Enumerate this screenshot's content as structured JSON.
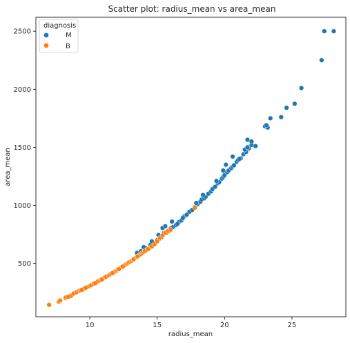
{
  "chart_data": {
    "type": "scatter",
    "title": "Scatter plot: radius_mean vs area_mean",
    "xlabel": "radius_mean",
    "ylabel": "area_mean",
    "xlim": [
      6.0,
      29.0
    ],
    "ylim": [
      40,
      2620
    ],
    "xticks": [
      10,
      15,
      20,
      25
    ],
    "yticks": [
      500,
      1000,
      1500,
      2000,
      2500
    ],
    "grid": false,
    "legend": {
      "title": "diagnosis",
      "placement": "top-left"
    },
    "colors": {
      "M": "#1f77b4",
      "B": "#ff7f0e"
    },
    "series": [
      {
        "name": "M",
        "points": [
          [
            13.5,
            590
          ],
          [
            13.8,
            605
          ],
          [
            14.2,
            630
          ],
          [
            14.5,
            660
          ],
          [
            14.8,
            675
          ],
          [
            15.0,
            700
          ],
          [
            15.2,
            715
          ],
          [
            15.3,
            725
          ],
          [
            15.5,
            760
          ],
          [
            15.4,
            805
          ],
          [
            15.7,
            765
          ],
          [
            15.9,
            780
          ],
          [
            16.0,
            800
          ],
          [
            16.2,
            815
          ],
          [
            16.4,
            830
          ],
          [
            16.6,
            855
          ],
          [
            16.8,
            870
          ],
          [
            17.0,
            905
          ],
          [
            17.2,
            920
          ],
          [
            17.4,
            945
          ],
          [
            17.6,
            960
          ],
          [
            17.8,
            985
          ],
          [
            18.0,
            1010
          ],
          [
            18.2,
            1030
          ],
          [
            18.3,
            1050
          ],
          [
            18.5,
            1060
          ],
          [
            18.6,
            1075
          ],
          [
            18.8,
            1100
          ],
          [
            19.0,
            1120
          ],
          [
            19.1,
            1140
          ],
          [
            19.3,
            1160
          ],
          [
            19.5,
            1190
          ],
          [
            19.6,
            1200
          ],
          [
            19.8,
            1230
          ],
          [
            19.9,
            1245
          ],
          [
            20.0,
            1260
          ],
          [
            20.2,
            1285
          ],
          [
            20.3,
            1300
          ],
          [
            20.5,
            1320
          ],
          [
            20.6,
            1335
          ],
          [
            20.7,
            1345
          ],
          [
            20.9,
            1375
          ],
          [
            21.0,
            1390
          ],
          [
            21.2,
            1405
          ],
          [
            21.4,
            1440
          ],
          [
            21.6,
            1460
          ],
          [
            21.5,
            1480
          ],
          [
            21.8,
            1490
          ],
          [
            22.0,
            1520
          ],
          [
            22.3,
            1510
          ],
          [
            21.7,
            1500
          ],
          [
            22.0,
            1550
          ],
          [
            21.7,
            1565
          ],
          [
            21.1,
            1400
          ],
          [
            20.6,
            1420
          ],
          [
            20.1,
            1350
          ],
          [
            19.9,
            1300
          ],
          [
            19.4,
            1210
          ],
          [
            18.4,
            1090
          ],
          [
            17.9,
            1020
          ],
          [
            16.9,
            890
          ],
          [
            16.5,
            840
          ],
          [
            16.1,
            860
          ],
          [
            15.6,
            820
          ],
          [
            15.1,
            745
          ],
          [
            14.6,
            690
          ],
          [
            14.0,
            640
          ],
          [
            23.0,
            1680
          ],
          [
            23.2,
            1670
          ],
          [
            23.1,
            1690
          ],
          [
            23.4,
            1750
          ],
          [
            24.2,
            1760
          ],
          [
            24.6,
            1840
          ],
          [
            25.2,
            1875
          ],
          [
            25.7,
            2010
          ],
          [
            27.2,
            2250
          ],
          [
            27.4,
            2500
          ],
          [
            28.1,
            2500
          ]
        ]
      },
      {
        "name": "B",
        "points": [
          [
            6.98,
            143
          ],
          [
            7.7,
            170
          ],
          [
            7.8,
            180
          ],
          [
            8.2,
            205
          ],
          [
            8.6,
            220
          ],
          [
            8.8,
            240
          ],
          [
            9.0,
            250
          ],
          [
            9.2,
            262
          ],
          [
            9.3,
            268
          ],
          [
            9.5,
            275
          ],
          [
            9.6,
            285
          ],
          [
            9.8,
            295
          ],
          [
            10.0,
            305
          ],
          [
            10.1,
            312
          ],
          [
            10.3,
            325
          ],
          [
            10.5,
            335
          ],
          [
            10.6,
            345
          ],
          [
            10.8,
            355
          ],
          [
            11.0,
            370
          ],
          [
            11.1,
            378
          ],
          [
            11.2,
            385
          ],
          [
            11.4,
            395
          ],
          [
            11.5,
            405
          ],
          [
            11.6,
            412
          ],
          [
            11.8,
            425
          ],
          [
            11.9,
            432
          ],
          [
            12.0,
            440
          ],
          [
            12.1,
            448
          ],
          [
            12.2,
            455
          ],
          [
            12.3,
            462
          ],
          [
            12.4,
            470
          ],
          [
            12.5,
            478
          ],
          [
            12.6,
            485
          ],
          [
            12.7,
            492
          ],
          [
            12.8,
            500
          ],
          [
            12.9,
            508
          ],
          [
            13.0,
            515
          ],
          [
            13.1,
            522
          ],
          [
            13.2,
            530
          ],
          [
            13.3,
            540
          ],
          [
            13.4,
            548
          ],
          [
            13.5,
            555
          ],
          [
            13.6,
            565
          ],
          [
            13.7,
            572
          ],
          [
            13.8,
            580
          ],
          [
            13.9,
            590
          ],
          [
            14.0,
            600
          ],
          [
            14.2,
            615
          ],
          [
            14.4,
            630
          ],
          [
            14.6,
            645
          ],
          [
            14.8,
            665
          ],
          [
            15.0,
            690
          ],
          [
            15.2,
            720
          ],
          [
            15.4,
            740
          ],
          [
            15.6,
            765
          ],
          [
            15.8,
            780
          ],
          [
            16.0,
            790
          ],
          [
            17.8,
            980
          ],
          [
            9.4,
            272
          ],
          [
            10.9,
            362
          ],
          [
            11.7,
            418
          ],
          [
            12.45,
            472
          ],
          [
            13.25,
            535
          ],
          [
            8.4,
            212
          ],
          [
            9.7,
            290
          ],
          [
            10.4,
            330
          ],
          [
            12.15,
            450
          ],
          [
            13.55,
            560
          ],
          [
            14.1,
            608
          ],
          [
            14.3,
            622
          ]
        ]
      }
    ]
  }
}
